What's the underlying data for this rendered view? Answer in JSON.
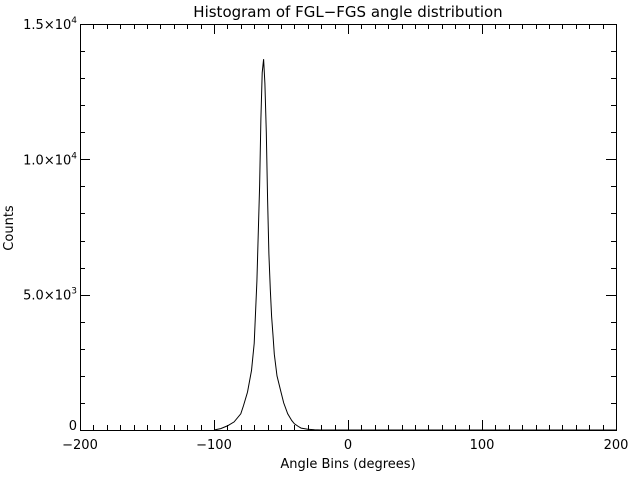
{
  "chart_data": {
    "type": "line",
    "title": "Histogram of FGL−FGS angle distribution",
    "xlabel": "Angle Bins (degrees)",
    "ylabel": "Counts",
    "xlim": [
      -200,
      200
    ],
    "ylim": [
      0,
      15000
    ],
    "x_ticks": [
      {
        "value": -200,
        "label": "−200"
      },
      {
        "value": -100,
        "label": "−100"
      },
      {
        "value": 0,
        "label": "0"
      },
      {
        "value": 100,
        "label": "100"
      },
      {
        "value": 200,
        "label": "200"
      }
    ],
    "y_ticks": [
      {
        "value": 0,
        "label": "0",
        "mantissa": "0",
        "exponent": ""
      },
      {
        "value": 5000,
        "label": "5.0×10^3",
        "mantissa": "5.0×10",
        "exponent": "3"
      },
      {
        "value": 10000,
        "label": "1.0×10^4",
        "mantissa": "1.0×10",
        "exponent": "4"
      },
      {
        "value": 15000,
        "label": "1.5×10^4",
        "mantissa": "1.5×10",
        "exponent": "4"
      }
    ],
    "x_minor_step": 10,
    "y_minor_step": 1000,
    "grid": false,
    "legend": "none",
    "series": [
      {
        "x": [
          -100,
          -95,
          -90,
          -85,
          -80,
          -78,
          -75,
          -72,
          -70,
          -68,
          -66,
          -65,
          -64,
          -63,
          -62,
          -61,
          -60,
          -59,
          -58,
          -57,
          -56,
          -55,
          -53,
          -50,
          -48,
          -45,
          -42,
          -40,
          -37,
          -35,
          -30,
          -25,
          -20,
          0,
          50,
          100,
          150,
          200
        ],
        "y": [
          0,
          50,
          150,
          300,
          600,
          900,
          1400,
          2200,
          3200,
          5500,
          9000,
          11500,
          13200,
          13700,
          12800,
          11000,
          8500,
          6500,
          5200,
          4200,
          3500,
          2800,
          2000,
          1400,
          1000,
          600,
          350,
          230,
          130,
          70,
          25,
          8,
          0,
          0,
          0,
          0,
          0,
          0
        ],
        "color": "#000000"
      }
    ]
  }
}
